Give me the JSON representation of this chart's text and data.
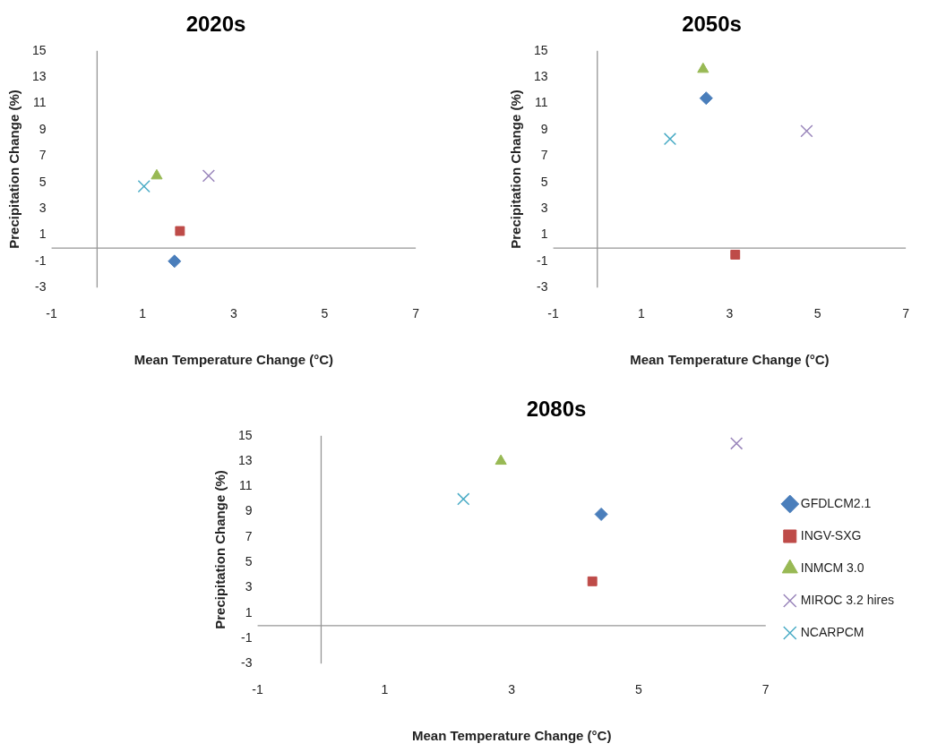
{
  "chart_data": [
    {
      "type": "scatter",
      "title": "2020s",
      "xlabel": "Mean Temperature Change (°C)",
      "ylabel": "Precipitation Change (%)",
      "xlim": [
        -1,
        7
      ],
      "xticks": [
        -1,
        1,
        3,
        5,
        7
      ],
      "ylim": [
        -3,
        15
      ],
      "yticks": [
        -3,
        -1,
        1,
        3,
        5,
        7,
        9,
        11,
        13,
        15
      ],
      "grid": false,
      "legend": false,
      "series": [
        {
          "color": "#4a7ebb",
          "marker": "diamond",
          "x": [
            1.7
          ],
          "values": [
            -1.0
          ]
        },
        {
          "color": "#be4b48",
          "marker": "square",
          "x": [
            1.82
          ],
          "values": [
            1.3
          ]
        },
        {
          "color": "#98b954",
          "marker": "triangle",
          "x": [
            1.31
          ],
          "values": [
            5.5
          ]
        },
        {
          "color": "#9a86bb",
          "marker": "cross",
          "x": [
            2.45
          ],
          "values": [
            5.5
          ]
        },
        {
          "color": "#4bacc6",
          "marker": "cross",
          "x": [
            1.03
          ],
          "values": [
            4.7
          ]
        }
      ]
    },
    {
      "type": "scatter",
      "title": "2050s",
      "xlabel": "Mean Temperature Change (°C)",
      "ylabel": "Precipitation Change (%)",
      "xlim": [
        -1,
        7
      ],
      "xticks": [
        -1,
        1,
        3,
        5,
        7
      ],
      "ylim": [
        -3,
        15
      ],
      "yticks": [
        -3,
        -1,
        1,
        3,
        5,
        7,
        9,
        11,
        13,
        15
      ],
      "grid": false,
      "legend": false,
      "series": [
        {
          "color": "#4a7ebb",
          "marker": "diamond",
          "x": [
            2.47
          ],
          "values": [
            11.4
          ]
        },
        {
          "color": "#be4b48",
          "marker": "square",
          "x": [
            3.13
          ],
          "values": [
            -0.5
          ]
        },
        {
          "color": "#98b954",
          "marker": "triangle",
          "x": [
            2.4
          ],
          "values": [
            13.6
          ]
        },
        {
          "color": "#9a86bb",
          "marker": "cross",
          "x": [
            4.75
          ],
          "values": [
            8.9
          ]
        },
        {
          "color": "#4bacc6",
          "marker": "cross",
          "x": [
            1.65
          ],
          "values": [
            8.3
          ]
        }
      ]
    },
    {
      "type": "scatter",
      "title": "2080s",
      "xlabel": "Mean Temperature Change (°C)",
      "ylabel": "Precipitation Change (%)",
      "xlim": [
        -1,
        7
      ],
      "xticks": [
        -1,
        1,
        3,
        5,
        7
      ],
      "ylim": [
        -3,
        15
      ],
      "yticks": [
        -3,
        -1,
        1,
        3,
        5,
        7,
        9,
        11,
        13,
        15
      ],
      "grid": false,
      "legend": "right",
      "series": [
        {
          "name": "GFDLCM2.1",
          "color": "#4a7ebb",
          "marker": "diamond",
          "x": [
            4.41
          ],
          "values": [
            8.8
          ]
        },
        {
          "name": "INGV-SXG",
          "color": "#be4b48",
          "marker": "square",
          "x": [
            4.27
          ],
          "values": [
            3.5
          ]
        },
        {
          "name": "INMCM 3.0",
          "color": "#98b954",
          "marker": "triangle",
          "x": [
            2.83
          ],
          "values": [
            13.0
          ]
        },
        {
          "name": "MIROC 3.2 hires",
          "color": "#9a86bb",
          "marker": "cross",
          "x": [
            6.54
          ],
          "values": [
            14.4
          ]
        },
        {
          "name": "NCARPCM",
          "color": "#4bacc6",
          "marker": "cross",
          "x": [
            2.24
          ],
          "values": [
            10.0
          ]
        }
      ]
    }
  ]
}
